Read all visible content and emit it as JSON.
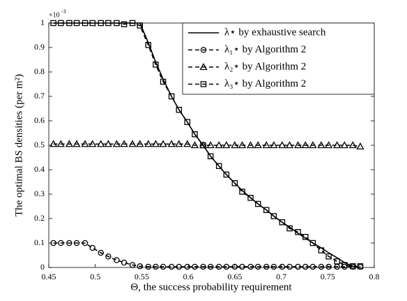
{
  "chart_data": {
    "type": "line",
    "x_label": "Θ, the success probability requirement",
    "y_label": "The optimal BS densities (per m²)",
    "y_multiplier": {
      "base": "×10",
      "exponent": "-3"
    },
    "x": [
      0.455,
      0.463,
      0.472,
      0.48,
      0.489,
      0.497,
      0.506,
      0.514,
      0.523,
      0.531,
      0.54,
      0.548,
      0.557,
      0.565,
      0.573,
      0.582,
      0.59,
      0.599,
      0.607,
      0.616,
      0.624,
      0.633,
      0.641,
      0.65,
      0.658,
      0.667,
      0.675,
      0.684,
      0.692,
      0.701,
      0.709,
      0.718,
      0.726,
      0.734,
      0.743,
      0.751,
      0.76,
      0.768,
      0.777,
      0.785
    ],
    "series": [
      {
        "name": "λ⋆ by exhaustive search",
        "color": "#000000",
        "dash": false,
        "marker": "none",
        "values": [
          1,
          1,
          1,
          1,
          1,
          1,
          1,
          1,
          1,
          1,
          1,
          1,
          0.92,
          0.84,
          0.77,
          0.7,
          0.645,
          0.595,
          0.545,
          0.5,
          0.455,
          0.415,
          0.38,
          0.345,
          0.315,
          0.285,
          0.26,
          0.235,
          0.21,
          0.185,
          0.165,
          0.14,
          0.12,
          0.1,
          0.08,
          0.06,
          0.04,
          0.02,
          0.005,
          0
        ]
      },
      {
        "name": "λ₁⋆ by Algorithm 2",
        "color": "#000000",
        "dash": true,
        "marker": "circle",
        "values": [
          0.1,
          0.1,
          0.1,
          0.1,
          0.1,
          0.08,
          0.06,
          0.045,
          0.03,
          0.02,
          0.01,
          0.005,
          0.003,
          0.003,
          0.003,
          0.003,
          0.003,
          0.003,
          0.003,
          0.003,
          0.003,
          0.003,
          0.003,
          0.003,
          0.003,
          0.003,
          0.003,
          0.003,
          0.003,
          0.003,
          0.003,
          0.003,
          0.003,
          0.003,
          0.003,
          0.003,
          0.003,
          0.003,
          0.003,
          0.003
        ]
      },
      {
        "name": "λ₂⋆ by Algorithm 2",
        "color": "#000000",
        "dash": true,
        "marker": "triangle",
        "values": [
          0.505,
          0.505,
          0.505,
          0.505,
          0.505,
          0.505,
          0.505,
          0.505,
          0.505,
          0.505,
          0.505,
          0.505,
          0.505,
          0.505,
          0.505,
          0.505,
          0.505,
          0.505,
          0.5,
          0.5,
          0.5,
          0.5,
          0.5,
          0.5,
          0.5,
          0.5,
          0.5,
          0.5,
          0.5,
          0.5,
          0.5,
          0.5,
          0.5,
          0.5,
          0.5,
          0.5,
          0.5,
          0.5,
          0.5,
          0.495
        ]
      },
      {
        "name": "λ₃⋆ by Algorithm 2",
        "color": "#000000",
        "dash": true,
        "marker": "square",
        "values": [
          1,
          1,
          1,
          1,
          1,
          1,
          1,
          1,
          1,
          0.995,
          1,
          0.99,
          0.91,
          0.83,
          0.76,
          0.7,
          0.645,
          0.595,
          0.545,
          0.5,
          0.455,
          0.415,
          0.38,
          0.345,
          0.31,
          0.285,
          0.26,
          0.235,
          0.21,
          0.185,
          0.16,
          0.145,
          0.125,
          0.1,
          0.07,
          0.045,
          0.025,
          0.01,
          0.005,
          0.005
        ]
      }
    ],
    "xlim": [
      0.45,
      0.8
    ],
    "xticks": [
      0.45,
      0.5,
      0.55,
      0.6,
      0.65,
      0.7,
      0.75,
      0.8
    ],
    "ylim": [
      0,
      1
    ],
    "yticks": [
      0,
      0.1,
      0.2,
      0.3,
      0.4,
      0.5,
      0.6,
      0.7,
      0.8,
      0.9,
      1
    ],
    "grid": false,
    "legend": "upper right"
  }
}
